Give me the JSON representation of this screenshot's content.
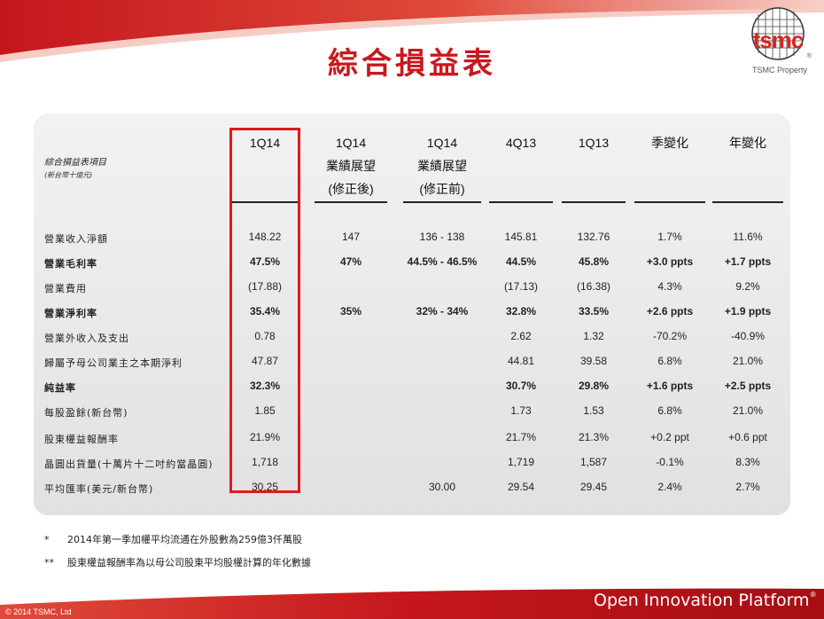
{
  "brand": {
    "logo_text": "tsmc",
    "logo_reg": "®",
    "property": "TSMC Property",
    "footer_right": "Open Innovation Platform",
    "footer_right_reg": "®",
    "copyright": "© 2014 TSMC, Ltd"
  },
  "title": "綜合損益表",
  "table": {
    "item_header": "綜合損益表項目",
    "item_subheader": "(新台幣十億元)",
    "columns": [
      {
        "line1": "",
        "line2": "1Q14",
        "line3": ""
      },
      {
        "line1": "1Q14",
        "line2": "業績展望",
        "line3": "(修正後)"
      },
      {
        "line1": "1Q14",
        "line2": "業績展望",
        "line3": "(修正前)"
      },
      {
        "line1": "",
        "line2": "4Q13",
        "line3": ""
      },
      {
        "line1": "",
        "line2": "1Q13",
        "line3": ""
      },
      {
        "line1": "",
        "line2": "季變化",
        "line3": ""
      },
      {
        "line1": "",
        "line2": "年變化",
        "line3": ""
      }
    ],
    "rows": [
      {
        "label": "營業收入淨額",
        "bold": false,
        "values": [
          "148.22",
          "147",
          "136 - 138",
          "145.81",
          "132.76",
          "1.7%",
          "11.6%"
        ]
      },
      {
        "label": "營業毛利率",
        "bold": true,
        "values": [
          "47.5%",
          "47%",
          "44.5% - 46.5%",
          "44.5%",
          "45.8%",
          "+3.0 ppts",
          "+1.7 ppts"
        ]
      },
      {
        "label": "營業費用",
        "bold": false,
        "values": [
          "(17.88)",
          "",
          "",
          "(17.13)",
          "(16.38)",
          "4.3%",
          "9.2%"
        ]
      },
      {
        "label": "營業淨利率",
        "bold": true,
        "values": [
          "35.4%",
          "35%",
          "32% - 34%",
          "32.8%",
          "33.5%",
          "+2.6 ppts",
          "+1.9 ppts"
        ]
      },
      {
        "label": "營業外收入及支出",
        "bold": false,
        "values": [
          "0.78",
          "",
          "",
          "2.62",
          "1.32",
          "-70.2%",
          "-40.9%"
        ]
      },
      {
        "label": "歸屬予母公司業主之本期淨利",
        "bold": false,
        "values": [
          "47.87",
          "",
          "",
          "44.81",
          "39.58",
          "6.8%",
          "21.0%"
        ]
      },
      {
        "label": "純益率",
        "bold": true,
        "values": [
          "32.3%",
          "",
          "",
          "30.7%",
          "29.8%",
          "+1.6 ppts",
          "+2.5 ppts"
        ]
      },
      {
        "label": "每股盈餘(新台幣)",
        "bold": false,
        "values": [
          "1.85",
          "",
          "",
          "1.73",
          "1.53",
          "6.8%",
          "21.0%"
        ]
      },
      {
        "label": "股東權益報酬率",
        "bold": false,
        "values": [
          "21.9%",
          "",
          "",
          "21.7%",
          "21.3%",
          "+0.2 ppt",
          "+0.6 ppt"
        ]
      },
      {
        "label": "晶圓出貨量(十萬片十二吋約當晶圓)",
        "bold": false,
        "values": [
          "1,718",
          "",
          "",
          "1,719",
          "1,587",
          "-0.1%",
          "8.3%"
        ]
      },
      {
        "label": "平均匯率(美元/新台幣)",
        "bold": false,
        "values": [
          "30.25",
          "",
          "30.00",
          "29.54",
          "29.45",
          "2.4%",
          "2.7%"
        ]
      }
    ]
  },
  "footnotes": [
    {
      "mark": "*",
      "text": "2014年第一季加權平均流通在外股數為259億3仟萬股"
    },
    {
      "mark": "**",
      "text": "股東權益報酬率為以母公司股東平均股權計算的年化數據"
    }
  ],
  "colors": {
    "accent": "#d9261c",
    "title": "#c8191e",
    "panel": "#e8e8e8",
    "highlight": "#e0191e"
  }
}
